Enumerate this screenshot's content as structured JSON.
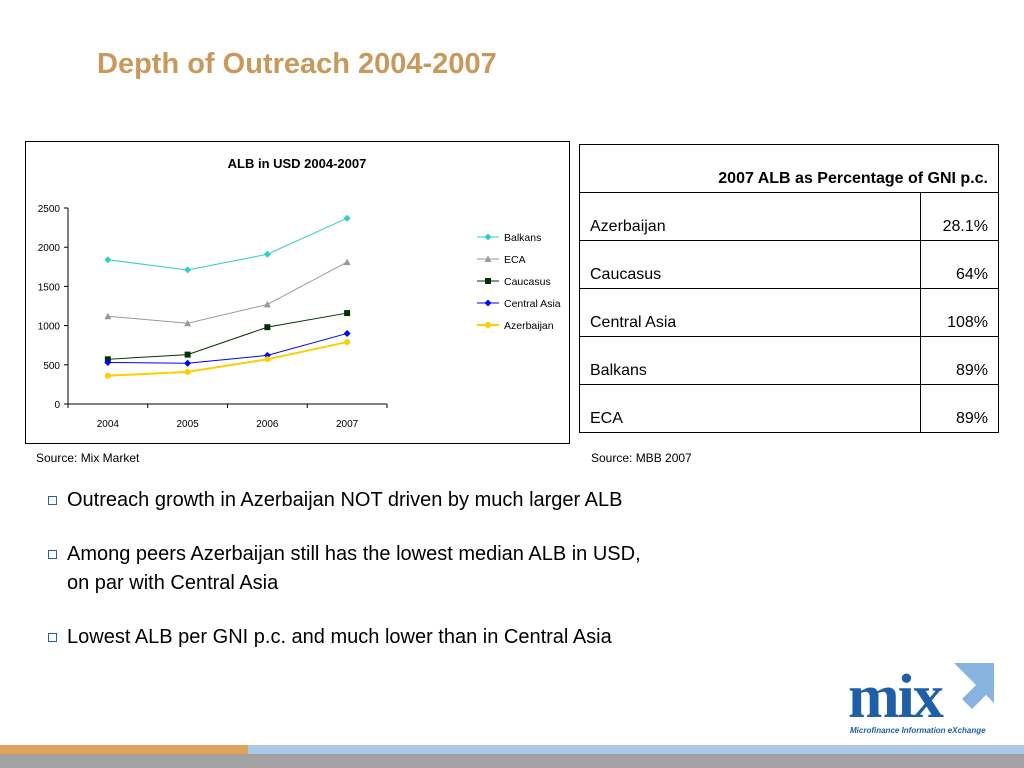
{
  "slide": {
    "title": "Depth of Outreach 2004-2007",
    "chart_source": "Source: Mix Market",
    "table_source": "Source: MBB 2007"
  },
  "chart_data": {
    "type": "line",
    "title": "ALB in USD 2004-2007",
    "xlabel": "",
    "ylabel": "",
    "x": [
      "2004",
      "2005",
      "2006",
      "2007"
    ],
    "ylim": [
      0,
      2500
    ],
    "yticks": [
      0,
      500,
      1000,
      1500,
      2000,
      2500
    ],
    "legend_position": "right",
    "series": [
      {
        "name": "Balkans",
        "values": [
          1840,
          1710,
          1910,
          2370
        ],
        "color": "#33cccc",
        "marker": "diamond"
      },
      {
        "name": "ECA",
        "values": [
          1120,
          1030,
          1270,
          1810
        ],
        "color": "#999999",
        "marker": "triangle"
      },
      {
        "name": "Caucasus",
        "values": [
          570,
          630,
          980,
          1160
        ],
        "color": "#003300",
        "marker": "square"
      },
      {
        "name": "Central Asia",
        "values": [
          530,
          520,
          620,
          900
        ],
        "color": "#0000ff",
        "marker": "diamond"
      },
      {
        "name": "Azerbaijan",
        "values": [
          360,
          410,
          570,
          790
        ],
        "color": "#ffcc00",
        "marker": "circle"
      }
    ]
  },
  "gni_table": {
    "header": "2007 ALB as Percentage of GNI p.c.",
    "rows": [
      {
        "country": "Azerbaijan",
        "value": "28.1%"
      },
      {
        "country": "Caucasus",
        "value": "64%"
      },
      {
        "country": "Central Asia",
        "value": "108%"
      },
      {
        "country": "Balkans",
        "value": "89%"
      },
      {
        "country": "ECA",
        "value": "89%"
      }
    ]
  },
  "bullets": [
    {
      "text": "Outreach growth in Azerbaijan NOT driven by much larger ALB"
    },
    {
      "line1": "Among peers Azerbaijan still has the lowest median ALB in USD,",
      "line2": "on par with Central Asia"
    },
    {
      "text": "Lowest ALB per GNI p.c. and much lower than in Central Asia"
    }
  ],
  "logo": {
    "word": "mix",
    "tagline": "Microfinance Information eXchange"
  },
  "colors": {
    "title": "#c9995c",
    "logo_blue": "#1f5fa8",
    "logo_light": "#7fb0dd",
    "bar_orange": "#e0a35c",
    "bar_blue": "#a9c9e6",
    "bar_gray": "#a2a2a2",
    "bullet_box": "#2a5ea5"
  }
}
